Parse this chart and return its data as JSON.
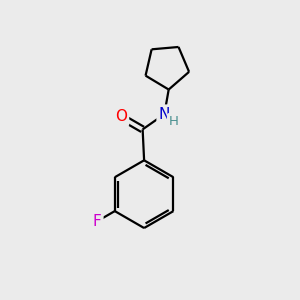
{
  "background_color": "#ebebeb",
  "bond_color": "#000000",
  "line_width": 1.6,
  "atom_colors": {
    "O": "#ff0000",
    "N": "#0000cc",
    "H": "#4a9090",
    "F": "#cc00cc",
    "C": "#000000"
  },
  "font_size_atoms": 11,
  "font_size_h": 9.5,
  "figsize": [
    3.0,
    3.0
  ],
  "dpi": 100
}
